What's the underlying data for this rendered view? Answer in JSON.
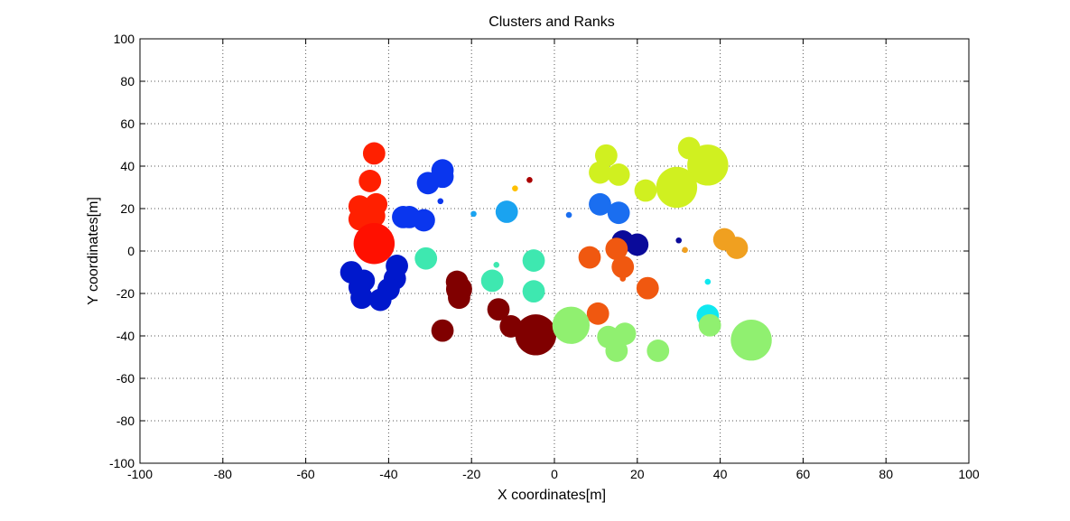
{
  "chart_data": {
    "type": "scatter",
    "title": "Clusters and Ranks",
    "xlabel": "X coordinates[m]",
    "ylabel": "Y coordinates[m]",
    "xlim": [
      -100,
      100
    ],
    "ylim": [
      -100,
      100
    ],
    "xticks": [
      -100,
      -80,
      -60,
      -40,
      -20,
      0,
      20,
      40,
      60,
      80,
      100
    ],
    "yticks": [
      -100,
      -80,
      -60,
      -40,
      -20,
      0,
      20,
      40,
      60,
      80,
      100
    ],
    "xtick_labels": [
      "-100",
      "-80",
      "-60",
      "-40",
      "-20",
      "0",
      "20",
      "40",
      "60",
      "80",
      "100"
    ],
    "ytick_labels": [
      "-100",
      "-80",
      "-60",
      "-40",
      "-20",
      "0",
      "20",
      "40",
      "60",
      "80",
      "100"
    ],
    "grid": true,
    "size_meaning": "rank (marker size)",
    "points": [
      {
        "x": -43.5,
        "y": 46,
        "s": 3,
        "c": "#ff2000"
      },
      {
        "x": -44.5,
        "y": 33,
        "s": 3,
        "c": "#ff2000"
      },
      {
        "x": -47,
        "y": 21,
        "s": 3,
        "c": "#ff2000"
      },
      {
        "x": -43,
        "y": 22,
        "s": 3,
        "c": "#ff2000"
      },
      {
        "x": -47,
        "y": 15,
        "s": 3,
        "c": "#ff2000"
      },
      {
        "x": -43.5,
        "y": 16.5,
        "s": 3,
        "c": "#ff2000"
      },
      {
        "x": -43.5,
        "y": 3.5,
        "s": 5.5,
        "c": "#ff1000"
      },
      {
        "x": -27,
        "y": 38,
        "s": 3,
        "c": "#0a36ee"
      },
      {
        "x": -27,
        "y": 35,
        "s": 3,
        "c": "#0a36ee"
      },
      {
        "x": -30.5,
        "y": 32,
        "s": 3,
        "c": "#0a36ee"
      },
      {
        "x": -27.5,
        "y": 23.5,
        "s": 0.8,
        "c": "#0a36ee"
      },
      {
        "x": -36.5,
        "y": 16,
        "s": 3,
        "c": "#0a36ee"
      },
      {
        "x": -35,
        "y": 16,
        "s": 3,
        "c": "#0a36ee"
      },
      {
        "x": -31.5,
        "y": 14.5,
        "s": 3,
        "c": "#0a36ee"
      },
      {
        "x": -38,
        "y": -7,
        "s": 3,
        "c": "#0018cc"
      },
      {
        "x": -49,
        "y": -10,
        "s": 3,
        "c": "#0018cc"
      },
      {
        "x": -46,
        "y": -14,
        "s": 3,
        "c": "#0018cc"
      },
      {
        "x": -38.5,
        "y": -13,
        "s": 3,
        "c": "#0018cc"
      },
      {
        "x": -47,
        "y": -17,
        "s": 3,
        "c": "#0018cc"
      },
      {
        "x": -40,
        "y": -18,
        "s": 3,
        "c": "#0018cc"
      },
      {
        "x": -46.5,
        "y": -22,
        "s": 3,
        "c": "#0018cc"
      },
      {
        "x": -43,
        "y": -24,
        "s": 0.8,
        "c": "#0018cc"
      },
      {
        "x": -42,
        "y": -23,
        "s": 3,
        "c": "#0018cc"
      },
      {
        "x": -31,
        "y": -3.5,
        "s": 3,
        "c": "#3ee8b0"
      },
      {
        "x": -14,
        "y": -6.5,
        "s": 0.8,
        "c": "#3ee8b0"
      },
      {
        "x": -5,
        "y": -4.5,
        "s": 3,
        "c": "#3ee8b0"
      },
      {
        "x": -15,
        "y": -14,
        "s": 3,
        "c": "#3ee8b0"
      },
      {
        "x": -5,
        "y": -19,
        "s": 3,
        "c": "#3ee8b0"
      },
      {
        "x": -19.5,
        "y": 17.5,
        "s": 0.8,
        "c": "#1aa3f0"
      },
      {
        "x": -11.5,
        "y": 18.5,
        "s": 3,
        "c": "#1aa3f0"
      },
      {
        "x": 3.5,
        "y": 17,
        "s": 0.8,
        "c": "#1a6ef0"
      },
      {
        "x": 11,
        "y": 22,
        "s": 3,
        "c": "#1a6ef0"
      },
      {
        "x": 15.5,
        "y": 18,
        "s": 3,
        "c": "#1a6ef0"
      },
      {
        "x": -9.5,
        "y": 29.5,
        "s": 0.8,
        "c": "#ffc000"
      },
      {
        "x": -6,
        "y": 33.5,
        "s": 0.8,
        "c": "#aa0000"
      },
      {
        "x": -23.5,
        "y": -14.5,
        "s": 3,
        "c": "#800000"
      },
      {
        "x": -23,
        "y": -18,
        "s": 3.5,
        "c": "#800000"
      },
      {
        "x": -23,
        "y": -22,
        "s": 3,
        "c": "#800000"
      },
      {
        "x": -24.5,
        "y": -23,
        "s": 0.8,
        "c": "#800000"
      },
      {
        "x": -13.5,
        "y": -27.5,
        "s": 3,
        "c": "#800000"
      },
      {
        "x": -10.5,
        "y": -35.5,
        "s": 3,
        "c": "#800000"
      },
      {
        "x": -27,
        "y": -37.5,
        "s": 3,
        "c": "#800000"
      },
      {
        "x": -4.5,
        "y": -39.5,
        "s": 5.5,
        "c": "#800000"
      },
      {
        "x": 12.5,
        "y": 45,
        "s": 3,
        "c": "#d0f020"
      },
      {
        "x": 32.5,
        "y": 48.5,
        "s": 3,
        "c": "#d0f020"
      },
      {
        "x": 37,
        "y": 40.5,
        "s": 5.5,
        "c": "#d0f020"
      },
      {
        "x": 11,
        "y": 37,
        "s": 3,
        "c": "#d0f020"
      },
      {
        "x": 15.5,
        "y": 36,
        "s": 3,
        "c": "#d0f020"
      },
      {
        "x": 29.5,
        "y": 30,
        "s": 5.5,
        "c": "#d0f020"
      },
      {
        "x": 22,
        "y": 28.5,
        "s": 3,
        "c": "#d0f020"
      },
      {
        "x": 16.5,
        "y": 4.5,
        "s": 3,
        "c": "#0a0a9a"
      },
      {
        "x": 20,
        "y": 3,
        "s": 3,
        "c": "#0a0a9a"
      },
      {
        "x": 30,
        "y": 5,
        "s": 0.8,
        "c": "#0a0a9a"
      },
      {
        "x": 15,
        "y": 1,
        "s": 3,
        "c": "#f05810"
      },
      {
        "x": 8.5,
        "y": -3,
        "s": 3,
        "c": "#f05810"
      },
      {
        "x": 16.5,
        "y": -7.5,
        "s": 3,
        "c": "#f05810"
      },
      {
        "x": 16.5,
        "y": -13,
        "s": 0.8,
        "c": "#f05810"
      },
      {
        "x": 22.5,
        "y": -17.5,
        "s": 3,
        "c": "#f05810"
      },
      {
        "x": 10.5,
        "y": -29.5,
        "s": 3,
        "c": "#f05810"
      },
      {
        "x": 41,
        "y": 5.5,
        "s": 3,
        "c": "#f0a020"
      },
      {
        "x": 44,
        "y": 1.5,
        "s": 3,
        "c": "#f0a020"
      },
      {
        "x": 31.5,
        "y": 0.5,
        "s": 0.8,
        "c": "#f0a020"
      },
      {
        "x": 37,
        "y": -14.5,
        "s": 0.8,
        "c": "#10e8f0"
      },
      {
        "x": 37,
        "y": -30.5,
        "s": 3,
        "c": "#10e8f0"
      },
      {
        "x": 4,
        "y": -35,
        "s": 5,
        "c": "#90f070"
      },
      {
        "x": 13,
        "y": -40.5,
        "s": 3,
        "c": "#90f070"
      },
      {
        "x": 17,
        "y": -39,
        "s": 3,
        "c": "#90f070"
      },
      {
        "x": 15,
        "y": -47,
        "s": 3,
        "c": "#90f070"
      },
      {
        "x": 25,
        "y": -47,
        "s": 3,
        "c": "#90f070"
      },
      {
        "x": 25.5,
        "y": -43.5,
        "s": 0.8,
        "c": "#90f070"
      },
      {
        "x": 37.5,
        "y": -35,
        "s": 3,
        "c": "#90f070"
      },
      {
        "x": 47.5,
        "y": -42,
        "s": 5.5,
        "c": "#90f070"
      }
    ]
  }
}
